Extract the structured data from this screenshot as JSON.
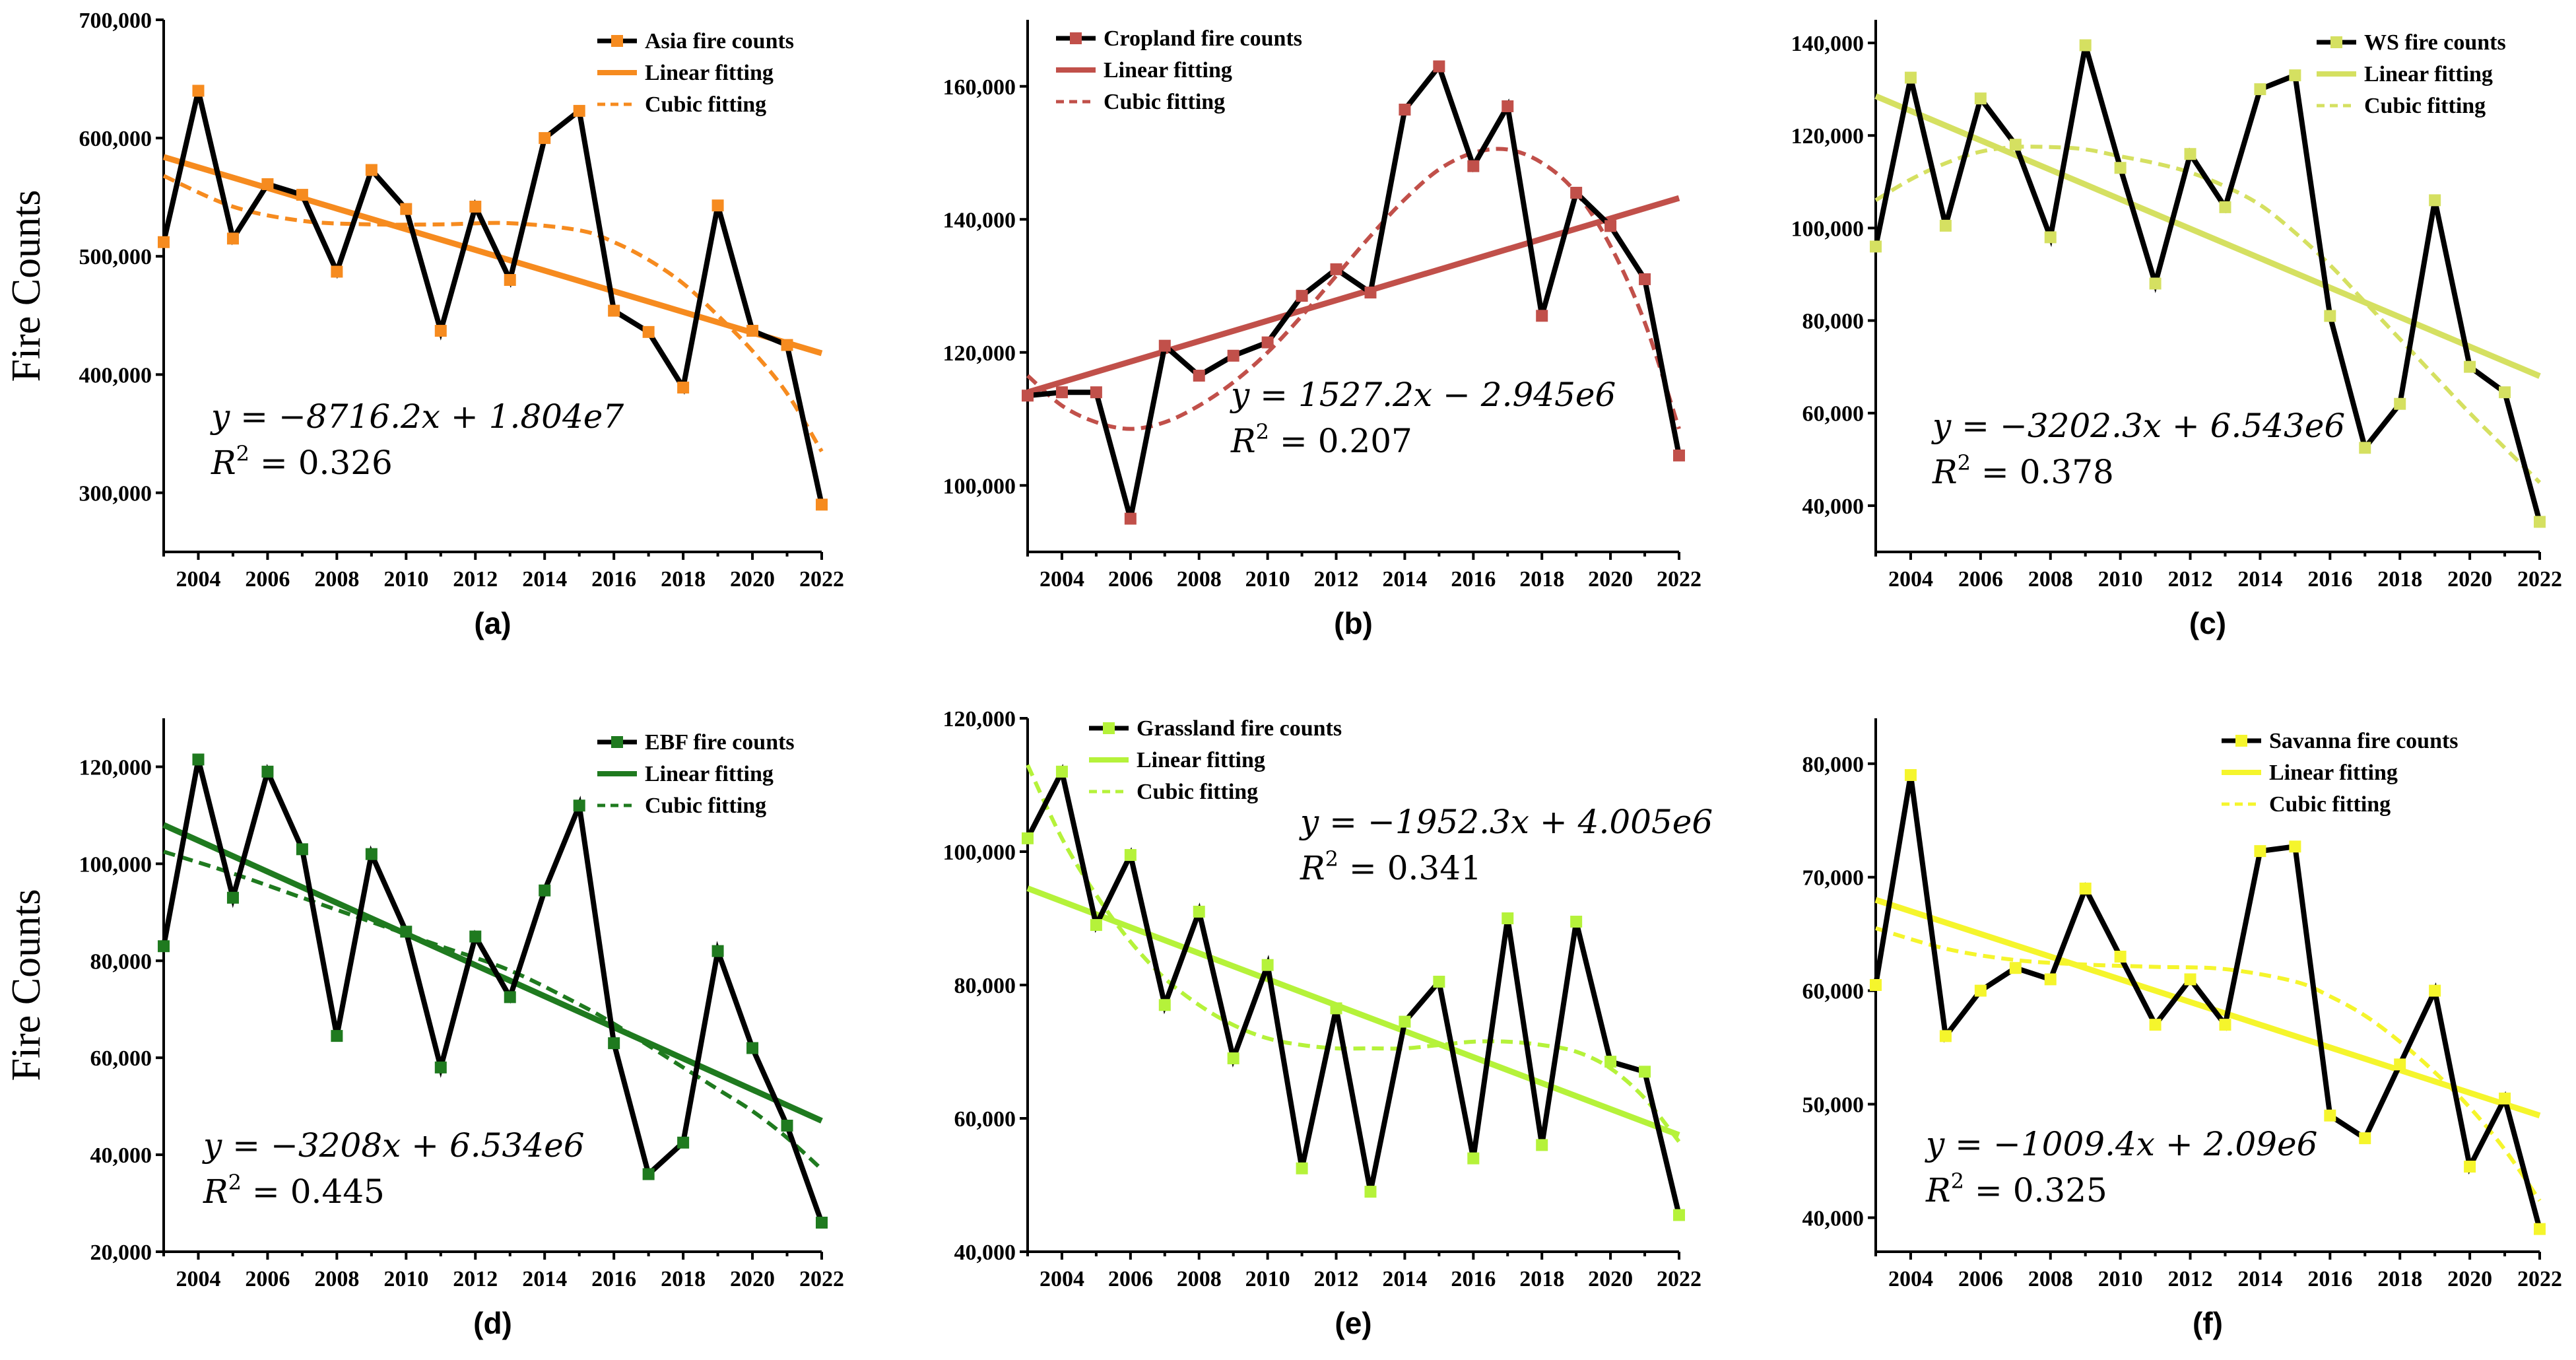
{
  "figure": {
    "y_axis_label": "Fire Counts",
    "legend_linear": "Linear fitting",
    "legend_cubic": "Cubic fitting"
  },
  "chart_data": [
    {
      "type": "line",
      "panel_label": "(a)",
      "ylabel": "Fire Counts",
      "xlim": [
        2003,
        2022
      ],
      "ylim": [
        250000,
        700000
      ],
      "yticks": [
        300000,
        400000,
        500000,
        600000,
        700000
      ],
      "ytick_labels": [
        "300,000",
        "400,000",
        "500,000",
        "600,000",
        "700,000"
      ],
      "xticks": [
        2004,
        2006,
        2008,
        2010,
        2012,
        2014,
        2016,
        2018,
        2020,
        2022
      ],
      "xtick_labels": [
        "2004",
        "2006",
        "2008",
        "2010",
        "2012",
        "2014",
        "2016",
        "2018",
        "2020",
        "2022"
      ],
      "color": "#f68b1f",
      "x": [
        2003,
        2004,
        2005,
        2006,
        2007,
        2008,
        2009,
        2010,
        2011,
        2012,
        2013,
        2014,
        2015,
        2016,
        2017,
        2018,
        2019,
        2020,
        2021,
        2022
      ],
      "series": [
        {
          "name": "Asia fire counts",
          "values": [
            512000,
            640000,
            515000,
            561000,
            552000,
            487000,
            573000,
            540000,
            437000,
            542000,
            480000,
            600000,
            623000,
            454000,
            436000,
            389000,
            543000,
            437000,
            425000,
            290000
          ]
        }
      ],
      "linear_fit": {
        "name": "Linear fitting",
        "x": [
          2003,
          2022
        ],
        "y": [
          584000,
          418000
        ]
      },
      "cubic_fit": {
        "name": "Cubic fitting",
        "x": [
          2003,
          2005,
          2007,
          2009,
          2011,
          2013,
          2015,
          2016,
          2017,
          2018,
          2019,
          2020,
          2021,
          2022
        ],
        "y": [
          568000,
          542000,
          530000,
          527000,
          527000,
          528000,
          522000,
          512000,
          497000,
          477000,
          450000,
          420000,
          384000,
          335000
        ]
      },
      "equation": {
        "lhs": "y = ",
        "rhs": "−8716.2x + 1.804e7",
        "r2_label": "R",
        "r2_value": " = 0.326"
      }
    },
    {
      "type": "line",
      "panel_label": "(b)",
      "ylabel": "",
      "xlim": [
        2003,
        2022
      ],
      "ylim": [
        90000,
        170000
      ],
      "yticks": [
        100000,
        120000,
        140000,
        160000
      ],
      "ytick_labels": [
        "100,000",
        "120,000",
        "140,000",
        "160,000"
      ],
      "xticks": [
        2004,
        2006,
        2008,
        2010,
        2012,
        2014,
        2016,
        2018,
        2020,
        2022
      ],
      "xtick_labels": [
        "2004",
        "2006",
        "2008",
        "2010",
        "2012",
        "2014",
        "2016",
        "2018",
        "2020",
        "2022"
      ],
      "color": "#c1504a",
      "x": [
        2003,
        2004,
        2005,
        2006,
        2007,
        2008,
        2009,
        2010,
        2011,
        2012,
        2013,
        2014,
        2015,
        2016,
        2017,
        2018,
        2019,
        2020,
        2021,
        2022
      ],
      "series": [
        {
          "name": "Cropland fire counts",
          "values": [
            113500,
            114000,
            114000,
            95000,
            121000,
            116500,
            119500,
            121500,
            128500,
            132500,
            129000,
            156500,
            163000,
            148000,
            157000,
            125500,
            144000,
            139000,
            131000,
            104500
          ]
        }
      ],
      "linear_fit": {
        "name": "Linear fitting",
        "x": [
          2003,
          2022
        ],
        "y": [
          114000,
          143200
        ]
      },
      "cubic_fit": {
        "name": "Cubic fitting",
        "x": [
          2003,
          2004,
          2005,
          2006,
          2007,
          2008,
          2009,
          2010,
          2011,
          2012,
          2013,
          2014,
          2015,
          2016,
          2017,
          2018,
          2019,
          2020,
          2021,
          2022
        ],
        "y": [
          116500,
          112000,
          109500,
          108500,
          109500,
          112000,
          115500,
          120000,
          125500,
          131500,
          137500,
          143000,
          147500,
          150000,
          150500,
          148500,
          144000,
          136000,
          124500,
          108500
        ]
      },
      "equation": {
        "lhs": "y = ",
        "rhs": "1527.2x − 2.945e6",
        "r2_label": "R",
        "r2_value": " = 0.207"
      }
    },
    {
      "type": "line",
      "panel_label": "(c)",
      "ylabel": "",
      "xlim": [
        2003,
        2022
      ],
      "ylim": [
        30000,
        145000
      ],
      "yticks": [
        40000,
        60000,
        80000,
        100000,
        120000,
        140000
      ],
      "ytick_labels": [
        "40,000",
        "60,000",
        "80,000",
        "100,000",
        "120,000",
        "140,000"
      ],
      "xticks": [
        2004,
        2006,
        2008,
        2010,
        2012,
        2014,
        2016,
        2018,
        2020,
        2022
      ],
      "xtick_labels": [
        "2004",
        "2006",
        "2008",
        "2010",
        "2012",
        "2014",
        "2016",
        "2018",
        "2020",
        "2022"
      ],
      "color": "#d5e061",
      "x": [
        2003,
        2004,
        2005,
        2006,
        2007,
        2008,
        2009,
        2010,
        2011,
        2012,
        2013,
        2014,
        2015,
        2016,
        2017,
        2018,
        2019,
        2020,
        2021,
        2022
      ],
      "series": [
        {
          "name": "WS fire counts",
          "values": [
            96000,
            132500,
            100500,
            128000,
            118000,
            98000,
            139500,
            113000,
            88000,
            116000,
            104500,
            130000,
            133000,
            81000,
            52500,
            62000,
            106000,
            70000,
            64500,
            36500
          ]
        }
      ],
      "linear_fit": {
        "name": "Linear fitting",
        "x": [
          2003,
          2022
        ],
        "y": [
          128500,
          68000
        ]
      },
      "cubic_fit": {
        "name": "Cubic fitting",
        "x": [
          2003,
          2004,
          2005,
          2006,
          2007,
          2008,
          2009,
          2010,
          2011,
          2012,
          2013,
          2014,
          2015,
          2016,
          2017,
          2018,
          2019,
          2020,
          2021,
          2022
        ],
        "y": [
          106000,
          110500,
          114000,
          116500,
          117500,
          117500,
          117000,
          115500,
          114000,
          112000,
          109000,
          105000,
          99000,
          92000,
          84000,
          76000,
          68000,
          60000,
          52500,
          45000
        ]
      },
      "equation": {
        "lhs": "y = ",
        "rhs": "−3202.3x + 6.543e6",
        "r2_label": "R",
        "r2_value": " = 0.378"
      }
    },
    {
      "type": "line",
      "panel_label": "(d)",
      "ylabel": "Fire Counts",
      "xlim": [
        2003,
        2022
      ],
      "ylim": [
        20000,
        130000
      ],
      "yticks": [
        20000,
        40000,
        60000,
        80000,
        100000,
        120000
      ],
      "ytick_labels": [
        "20,000",
        "40,000",
        "60,000",
        "80,000",
        "100,000",
        "120,000"
      ],
      "xticks": [
        2004,
        2006,
        2008,
        2010,
        2012,
        2014,
        2016,
        2018,
        2020,
        2022
      ],
      "xtick_labels": [
        "2004",
        "2006",
        "2008",
        "2010",
        "2012",
        "2014",
        "2016",
        "2018",
        "2020",
        "2022"
      ],
      "color": "#1f7a1f",
      "x": [
        2003,
        2004,
        2005,
        2006,
        2007,
        2008,
        2009,
        2010,
        2011,
        2012,
        2013,
        2014,
        2015,
        2016,
        2017,
        2018,
        2019,
        2020,
        2021,
        2022
      ],
      "series": [
        {
          "name": "EBF fire counts",
          "values": [
            83000,
            121500,
            93000,
            119000,
            103000,
            64500,
            102000,
            86000,
            58000,
            85000,
            72500,
            94500,
            112000,
            63000,
            36000,
            42500,
            82000,
            62000,
            46000,
            26000
          ]
        }
      ],
      "linear_fit": {
        "name": "Linear fitting",
        "x": [
          2003,
          2022
        ],
        "y": [
          108000,
          47000
        ]
      },
      "cubic_fit": {
        "name": "Cubic fitting",
        "x": [
          2003,
          2005,
          2007,
          2009,
          2011,
          2013,
          2015,
          2016,
          2017,
          2018,
          2019,
          2020,
          2021,
          2022
        ],
        "y": [
          102500,
          98000,
          93000,
          88000,
          83000,
          78000,
          71000,
          67000,
          62500,
          58000,
          53500,
          49000,
          43500,
          37000
        ]
      },
      "equation": {
        "lhs": "y = ",
        "rhs": "−3208x + 6.534e6",
        "r2_label": "R",
        "r2_value": " = 0.445"
      }
    },
    {
      "type": "line",
      "panel_label": "(e)",
      "ylabel": "",
      "xlim": [
        2003,
        2022
      ],
      "ylim": [
        40000,
        120000
      ],
      "yticks": [
        40000,
        60000,
        80000,
        100000,
        120000
      ],
      "ytick_labels": [
        "40,000",
        "60,000",
        "80,000",
        "100,000",
        "120,000"
      ],
      "xticks": [
        2004,
        2006,
        2008,
        2010,
        2012,
        2014,
        2016,
        2018,
        2020,
        2022
      ],
      "xtick_labels": [
        "2004",
        "2006",
        "2008",
        "2010",
        "2012",
        "2014",
        "2016",
        "2018",
        "2020",
        "2022"
      ],
      "color": "#b5f23a",
      "x": [
        2003,
        2004,
        2005,
        2006,
        2007,
        2008,
        2009,
        2010,
        2011,
        2012,
        2013,
        2014,
        2015,
        2016,
        2017,
        2018,
        2019,
        2020,
        2021,
        2022
      ],
      "series": [
        {
          "name": "Grassland fire counts",
          "values": [
            102000,
            112000,
            89000,
            99500,
            77000,
            91000,
            69000,
            83000,
            52500,
            76500,
            49000,
            74500,
            80500,
            54000,
            90000,
            56000,
            89500,
            68500,
            67000,
            45500
          ]
        }
      ],
      "linear_fit": {
        "name": "Linear fitting",
        "x": [
          2003,
          2022
        ],
        "y": [
          94500,
          57500
        ]
      },
      "cubic_fit": {
        "name": "Cubic fitting",
        "x": [
          2003,
          2004,
          2005,
          2006,
          2007,
          2008,
          2009,
          2010,
          2011,
          2012,
          2013,
          2014,
          2015,
          2016,
          2017,
          2018,
          2019,
          2020,
          2021,
          2022
        ],
        "y": [
          113000,
          102000,
          93500,
          86500,
          81000,
          77000,
          74000,
          72000,
          71000,
          70500,
          70500,
          70500,
          71000,
          71500,
          71500,
          71000,
          70000,
          67500,
          63000,
          56500
        ]
      },
      "equation": {
        "lhs": "y = ",
        "rhs": "−1952.3x + 4.005e6",
        "r2_label": "R",
        "r2_value": " = 0.341"
      }
    },
    {
      "type": "line",
      "panel_label": "(f)",
      "ylabel": "",
      "xlim": [
        2003,
        2022
      ],
      "ylim": [
        37000,
        84000
      ],
      "yticks": [
        40000,
        50000,
        60000,
        70000,
        80000
      ],
      "ytick_labels": [
        "40,000",
        "50,000",
        "60,000",
        "70,000",
        "80,000"
      ],
      "xticks": [
        2004,
        2006,
        2008,
        2010,
        2012,
        2014,
        2016,
        2018,
        2020,
        2022
      ],
      "xtick_labels": [
        "2004",
        "2006",
        "2008",
        "2010",
        "2012",
        "2014",
        "2016",
        "2018",
        "2020",
        "2022"
      ],
      "color": "#f5f52c",
      "x": [
        2003,
        2004,
        2005,
        2006,
        2007,
        2008,
        2009,
        2010,
        2011,
        2012,
        2013,
        2014,
        2015,
        2016,
        2017,
        2018,
        2019,
        2020,
        2021,
        2022
      ],
      "series": [
        {
          "name": "Savanna fire counts",
          "values": [
            60500,
            79000,
            56000,
            60000,
            62000,
            61000,
            69000,
            63000,
            57000,
            61000,
            57000,
            72300,
            72700,
            49000,
            47000,
            53500,
            60000,
            44500,
            50500,
            39000
          ]
        }
      ],
      "linear_fit": {
        "name": "Linear fitting",
        "x": [
          2003,
          2022
        ],
        "y": [
          68000,
          49000
        ]
      },
      "cubic_fit": {
        "name": "Cubic fitting",
        "x": [
          2003,
          2005,
          2007,
          2009,
          2011,
          2013,
          2015,
          2016,
          2017,
          2018,
          2019,
          2020,
          2021,
          2022
        ],
        "y": [
          65500,
          63700,
          62700,
          62300,
          62100,
          61900,
          60800,
          59500,
          57800,
          55500,
          52800,
          49700,
          46000,
          41500
        ]
      },
      "equation": {
        "lhs": "y = ",
        "rhs": "−1009.4x + 2.09e6",
        "r2_label": "R",
        "r2_value": " = 0.325"
      }
    }
  ]
}
